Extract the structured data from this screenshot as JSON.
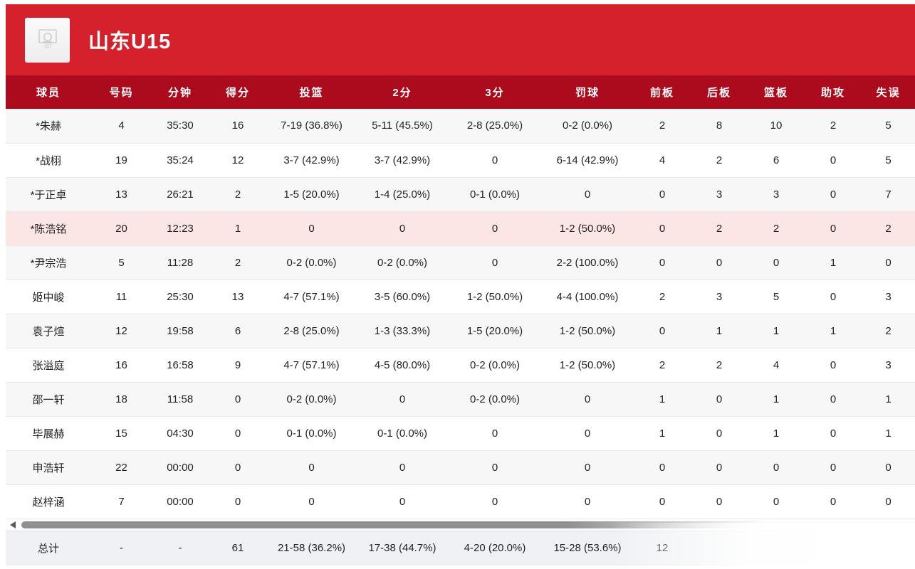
{
  "header": {
    "title": "山东U15",
    "logo_icon": "basketball-hoop-icon"
  },
  "colors": {
    "banner_red": "#d5212c",
    "header_red": "#ab0b1c",
    "highlight_pink": "#fbe5e5",
    "row_alt": "#f7f7f7",
    "totals_bg": "#eff1f5",
    "text_dark": "#222222"
  },
  "scrollbar": {
    "left_arrow_icon": "triangle-left-icon"
  },
  "table": {
    "columns": [
      "球员",
      "号码",
      "分钟",
      "得分",
      "投篮",
      "2分",
      "3分",
      "罚球",
      "前板",
      "后板",
      "篮板",
      "助攻",
      "失误"
    ],
    "highlighted_row_index": 3,
    "rows": [
      [
        "*朱赫",
        "4",
        "35:30",
        "16",
        "7-19 (36.8%)",
        "5-11 (45.5%)",
        "2-8 (25.0%)",
        "0-2 (0.0%)",
        "2",
        "8",
        "10",
        "2",
        "5"
      ],
      [
        "*战栩",
        "19",
        "35:24",
        "12",
        "3-7 (42.9%)",
        "3-7 (42.9%)",
        "0",
        "6-14 (42.9%)",
        "4",
        "2",
        "6",
        "0",
        "5"
      ],
      [
        "*于正卓",
        "13",
        "26:21",
        "2",
        "1-5 (20.0%)",
        "1-4 (25.0%)",
        "0-1 (0.0%)",
        "0",
        "0",
        "3",
        "3",
        "0",
        "7"
      ],
      [
        "*陈浩铭",
        "20",
        "12:23",
        "1",
        "0",
        "0",
        "0",
        "1-2 (50.0%)",
        "0",
        "2",
        "2",
        "0",
        "2"
      ],
      [
        "*尹宗浩",
        "5",
        "11:28",
        "2",
        "0-2 (0.0%)",
        "0-2 (0.0%)",
        "0",
        "2-2 (100.0%)",
        "0",
        "0",
        "0",
        "1",
        "0"
      ],
      [
        "姬中峻",
        "11",
        "25:30",
        "13",
        "4-7 (57.1%)",
        "3-5 (60.0%)",
        "1-2 (50.0%)",
        "4-4 (100.0%)",
        "2",
        "3",
        "5",
        "0",
        "3"
      ],
      [
        "袁子煊",
        "12",
        "19:58",
        "6",
        "2-8 (25.0%)",
        "1-3 (33.3%)",
        "1-5 (20.0%)",
        "1-2 (50.0%)",
        "0",
        "1",
        "1",
        "1",
        "2"
      ],
      [
        "张溢庭",
        "16",
        "16:58",
        "9",
        "4-7 (57.1%)",
        "4-5 (80.0%)",
        "0-2 (0.0%)",
        "1-2 (50.0%)",
        "2",
        "2",
        "4",
        "0",
        "3"
      ],
      [
        "邵一轩",
        "18",
        "11:58",
        "0",
        "0-2 (0.0%)",
        "0",
        "0-2 (0.0%)",
        "0",
        "1",
        "0",
        "1",
        "0",
        "1"
      ],
      [
        "毕展赫",
        "15",
        "04:30",
        "0",
        "0-1 (0.0%)",
        "0-1 (0.0%)",
        "0",
        "0",
        "1",
        "0",
        "1",
        "0",
        "1"
      ],
      [
        "申浩轩",
        "22",
        "00:00",
        "0",
        "0",
        "0",
        "0",
        "0",
        "0",
        "0",
        "0",
        "0",
        "0"
      ],
      [
        "赵梓涵",
        "7",
        "00:00",
        "0",
        "0",
        "0",
        "0",
        "0",
        "0",
        "0",
        "0",
        "0",
        "0"
      ]
    ],
    "totals": [
      "总计",
      "-",
      "-",
      "61",
      "21-58 (36.2%)",
      "17-38 (44.7%)",
      "4-20 (20.0%)",
      "15-28 (53.6%)",
      "12",
      "",
      "",
      "",
      ""
    ]
  }
}
